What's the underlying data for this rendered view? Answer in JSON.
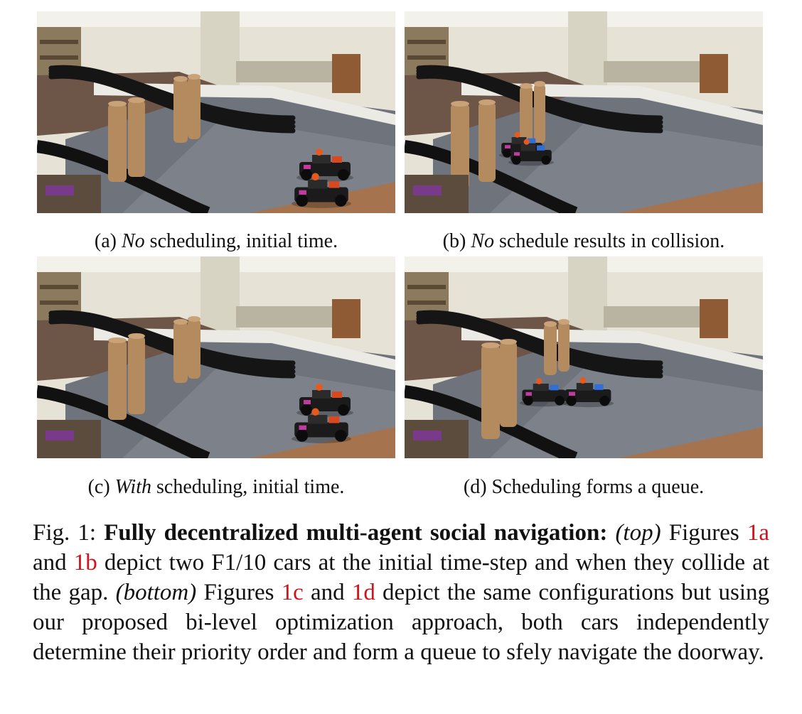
{
  "figure": {
    "panels": [
      {
        "id": "a",
        "label": "(a)",
        "emph": "No",
        "rest": "scheduling, initial time.",
        "cars": [
          {
            "x": 405,
            "y": 222,
            "s": 1.0,
            "color": "#d9481f"
          },
          {
            "x": 400,
            "y": 258,
            "s": 1.05,
            "color": "#d9481f"
          }
        ]
      },
      {
        "id": "b",
        "label": "(b)",
        "emph": "No",
        "rest": "schedule results in collision.",
        "cars": [
          {
            "x": 165,
            "y": 193,
            "s": 0.8,
            "color": "#2f6fd6"
          },
          {
            "x": 178,
            "y": 203,
            "s": 0.8,
            "color": "#2f6fd6"
          }
        ]
      },
      {
        "id": "c",
        "label": "(c)",
        "emph": "With",
        "rest": "scheduling, initial time.",
        "cars": [
          {
            "x": 405,
            "y": 208,
            "s": 1.0,
            "color": "#d9481f"
          },
          {
            "x": 400,
            "y": 244,
            "s": 1.05,
            "color": "#d9481f"
          }
        ]
      },
      {
        "id": "d",
        "label": "(d)",
        "emph": "",
        "rest": "Scheduling forms a queue.",
        "cars": [
          {
            "x": 196,
            "y": 196,
            "s": 0.85,
            "color": "#2f6fd6"
          },
          {
            "x": 258,
            "y": 196,
            "s": 0.9,
            "color": "#2f6fd6"
          }
        ]
      }
    ],
    "caption": {
      "prefix": "Fig. 1:",
      "title": "Fully decentralized multi-agent social navigation:",
      "top_tag": "(top)",
      "t1": "Figures",
      "ref1": "1a",
      "t2": "and",
      "ref2": "1b",
      "t3": "depict two F1/10 cars at the initial time-step and when they collide at the gap.",
      "bottom_tag": "(bottom)",
      "t4": "Figures",
      "ref3": "1c",
      "t5": "and",
      "ref4": "1d",
      "t6": "depict the same configurations but using our proposed bi-level optimization approach, both cars independently determine their priority order and form a queue to sfely navigate the doorway."
    }
  }
}
